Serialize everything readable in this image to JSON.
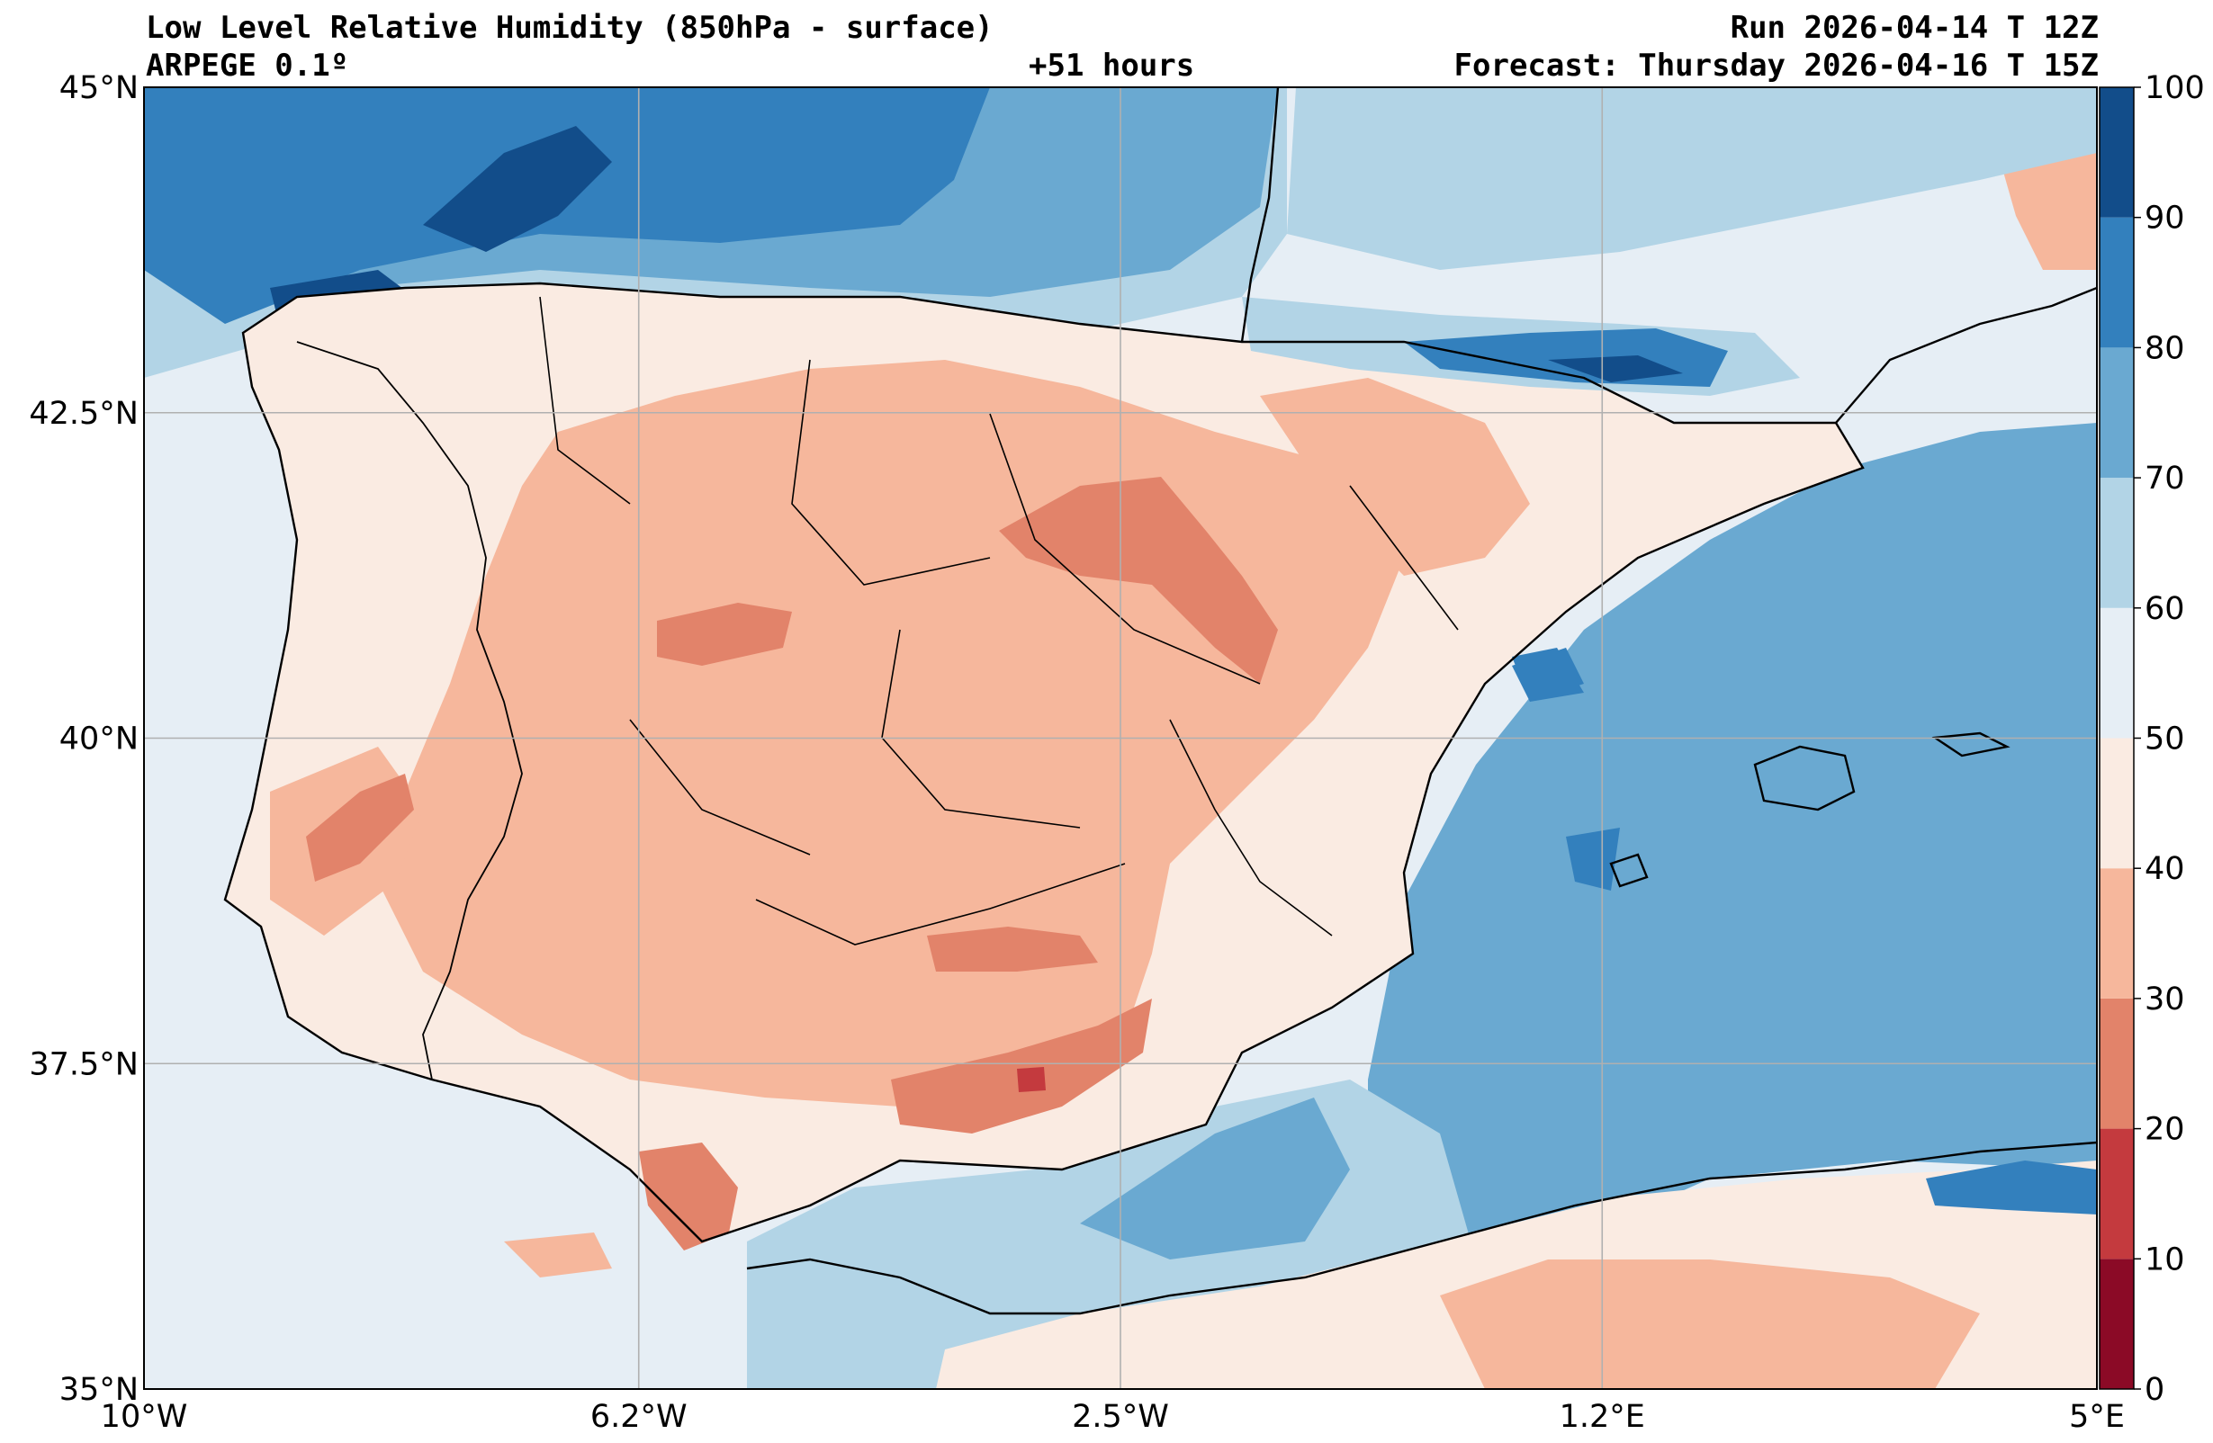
{
  "header": {
    "title": "Low Level Relative Humidity (850hPa - surface)",
    "model": "ARPEGE 0.1º",
    "lead": "+51 hours",
    "run": "Run 2026-04-14 T 12Z",
    "forecast": "Forecast: Thursday 2026-04-16 T 15Z"
  },
  "map": {
    "extent": {
      "lon_min": -10,
      "lon_max": 5,
      "lat_min": 35,
      "lat_max": 45
    },
    "lon_ticks": [
      {
        "value": -10,
        "label": "10°W"
      },
      {
        "value": -6.2,
        "label": "6.2°W"
      },
      {
        "value": -2.5,
        "label": "2.5°W"
      },
      {
        "value": 1.2,
        "label": "1.2°E"
      },
      {
        "value": 5,
        "label": "5°E"
      }
    ],
    "lat_ticks": [
      {
        "value": 45,
        "label": "45°N"
      },
      {
        "value": 42.5,
        "label": "42.5°N"
      },
      {
        "value": 40,
        "label": "40°N"
      },
      {
        "value": 37.5,
        "label": "37.5°N"
      },
      {
        "value": 35,
        "label": "35°N"
      }
    ],
    "gridlines": true
  },
  "colorbar": {
    "levels": [
      0,
      10,
      20,
      30,
      40,
      50,
      60,
      70,
      80,
      90,
      100
    ],
    "colors": [
      "#8b0a26",
      "#c43a3e",
      "#e2836a",
      "#f6b79c",
      "#faebe2",
      "#e6eef5",
      "#b2d4e6",
      "#6aa9d1",
      "#3380bd",
      "#124d8a"
    ]
  },
  "legend_colors": {
    "dry": "#f6b79c",
    "very_dry": "#e2836a",
    "moist": "#b2d4e6",
    "wet": "#6aa9d1",
    "very_wet": "#3380bd",
    "saturated": "#124d8a",
    "neutral_land": "#faebe2",
    "neutral_sea": "#e6eef5"
  }
}
